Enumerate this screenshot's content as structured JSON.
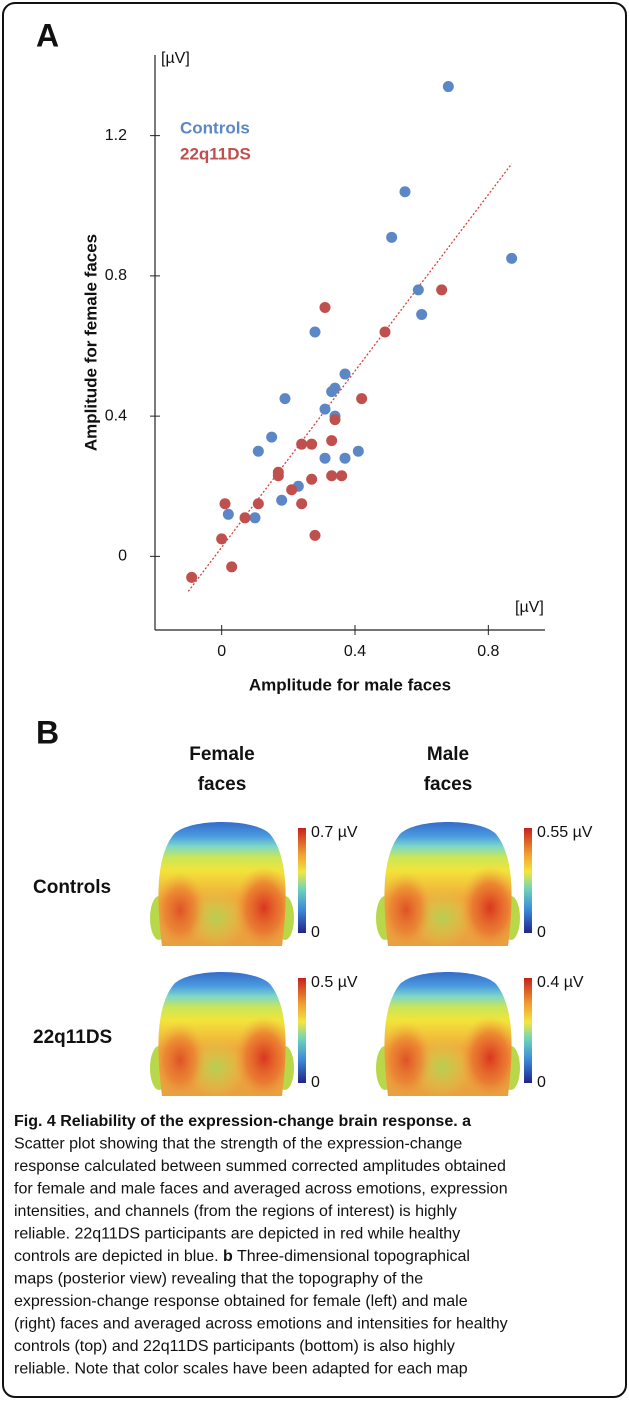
{
  "chart_data": {
    "type": "scatter",
    "panel_label": "A",
    "x_label": "Amplitude for male faces",
    "y_label": "Amplitude for female faces",
    "x_unit": "[µV]",
    "y_unit": "[µV]",
    "xlim": [
      -0.2,
      0.97
    ],
    "ylim": [
      -0.21,
      1.43
    ],
    "xticks": [
      0,
      0.4,
      0.8
    ],
    "yticks": [
      0,
      0.4,
      0.8,
      1.2
    ],
    "grid": false,
    "legend": "upper left",
    "series": [
      {
        "name": "Controls",
        "color": "#5b87c6",
        "x": [
          0.68,
          0.55,
          0.51,
          0.87,
          0.59,
          0.6,
          0.28,
          0.37,
          0.34,
          0.33,
          0.19,
          0.31,
          0.34,
          0.15,
          0.11,
          0.41,
          0.37,
          0.31,
          0.23,
          0.18,
          0.02,
          0.1
        ],
        "values": [
          1.34,
          1.04,
          0.91,
          0.85,
          0.76,
          0.69,
          0.64,
          0.52,
          0.48,
          0.47,
          0.45,
          0.42,
          0.4,
          0.34,
          0.3,
          0.3,
          0.28,
          0.28,
          0.2,
          0.16,
          0.12,
          0.11
        ]
      },
      {
        "name": "22q11DS",
        "color": "#c0504d",
        "x": [
          0.31,
          0.66,
          0.49,
          0.42,
          0.34,
          0.24,
          0.27,
          0.33,
          0.17,
          0.17,
          0.33,
          0.36,
          0.27,
          0.21,
          0.24,
          0.11,
          0.01,
          0.07,
          0.28,
          0.0,
          0.03,
          -0.09
        ],
        "values": [
          0.71,
          0.76,
          0.64,
          0.45,
          0.39,
          0.32,
          0.32,
          0.33,
          0.24,
          0.23,
          0.23,
          0.23,
          0.22,
          0.19,
          0.15,
          0.15,
          0.15,
          0.11,
          0.06,
          0.05,
          -0.03,
          -0.06
        ]
      }
    ],
    "trendline": {
      "color": "#d9413c",
      "x": [
        -0.1,
        0.87
      ],
      "values": [
        -0.1,
        1.12
      ]
    }
  },
  "panel_b": {
    "label": "B",
    "columns": [
      [
        "Female",
        "faces"
      ],
      [
        "Male",
        "faces"
      ]
    ],
    "rows": [
      "Controls",
      "22q11DS"
    ],
    "maps": [
      [
        {
          "scale_max": "0.7 µV",
          "scale_min": "0"
        },
        {
          "scale_max": "0.55 µV",
          "scale_min": "0"
        }
      ],
      [
        {
          "scale_max": "0.5 µV",
          "scale_min": "0"
        },
        {
          "scale_max": "0.4 µV",
          "scale_min": "0"
        }
      ]
    ]
  },
  "caption": {
    "lines": [
      [
        {
          "text": "Fig. 4 Reliability of the expression-change brain response. a",
          "bold": true
        }
      ],
      [
        {
          "text": "Scatter plot showing that the strength of the expression-change",
          "bold": false
        }
      ],
      [
        {
          "text": "response calculated between summed corrected amplitudes obtained",
          "bold": false
        }
      ],
      [
        {
          "text": "for female and male faces and averaged across emotions, expression",
          "bold": false
        }
      ],
      [
        {
          "text": "intensities, and channels (from the regions of interest) is highly",
          "bold": false
        }
      ],
      [
        {
          "text": "reliable. 22q11DS participants are depicted in red while healthy",
          "bold": false
        }
      ],
      [
        {
          "text": "controls are depicted in blue. ",
          "bold": false
        },
        {
          "text": "b",
          "bold": true
        },
        {
          "text": " Three-dimensional topographical",
          "bold": false
        }
      ],
      [
        {
          "text": "maps (posterior view) revealing that the topography of the",
          "bold": false
        }
      ],
      [
        {
          "text": "expression-change response obtained for female (left) and male",
          "bold": false
        }
      ],
      [
        {
          "text": "(right) faces and averaged across emotions and intensities for healthy",
          "bold": false
        }
      ],
      [
        {
          "text": "controls (top) and 22q11DS participants (bottom) is also highly",
          "bold": false
        }
      ],
      [
        {
          "text": "reliable. Note that color scales have been adapted for each map",
          "bold": false
        }
      ]
    ]
  }
}
